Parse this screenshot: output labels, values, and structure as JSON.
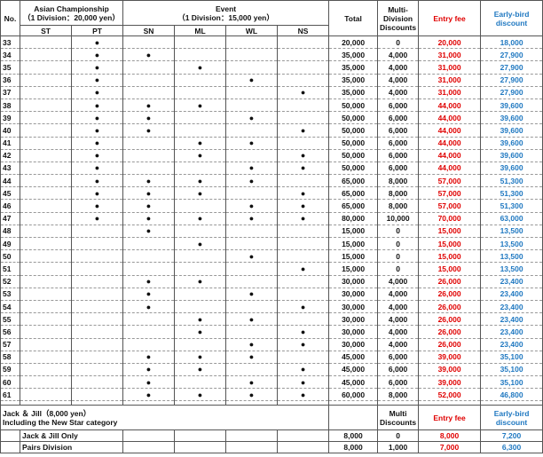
{
  "header": {
    "no": "No.",
    "asian": "Asian Championship",
    "asian_note": "（1 Division：20,000 yen）",
    "event": "Event",
    "event_note": "（1 Division：15,000 yen）",
    "total": "Total",
    "multi": "Multi-Division Discounts",
    "entry": "Entry fee",
    "early": "Early-bird discount",
    "subcolumns": [
      "ST",
      "PT",
      "SN",
      "ML",
      "WL",
      "NS"
    ]
  },
  "rows": [
    [
      "33",
      null,
      "●",
      null,
      null,
      null,
      null,
      "20,000",
      "0",
      "20,000",
      "18,000"
    ],
    [
      "34",
      null,
      "●",
      "●",
      null,
      null,
      null,
      "35,000",
      "4,000",
      "31,000",
      "27,900"
    ],
    [
      "35",
      null,
      "●",
      null,
      "●",
      null,
      null,
      "35,000",
      "4,000",
      "31,000",
      "27,900"
    ],
    [
      "36",
      null,
      "●",
      null,
      null,
      "●",
      null,
      "35,000",
      "4,000",
      "31,000",
      "27,900"
    ],
    [
      "37",
      null,
      "●",
      null,
      null,
      null,
      "●",
      "35,000",
      "4,000",
      "31,000",
      "27,900"
    ],
    [
      "38",
      null,
      "●",
      "●",
      "●",
      null,
      null,
      "50,000",
      "6,000",
      "44,000",
      "39,600"
    ],
    [
      "39",
      null,
      "●",
      "●",
      null,
      "●",
      null,
      "50,000",
      "6,000",
      "44,000",
      "39,600"
    ],
    [
      "40",
      null,
      "●",
      "●",
      null,
      null,
      "●",
      "50,000",
      "6,000",
      "44,000",
      "39,600"
    ],
    [
      "41",
      null,
      "●",
      null,
      "●",
      "●",
      null,
      "50,000",
      "6,000",
      "44,000",
      "39,600"
    ],
    [
      "42",
      null,
      "●",
      null,
      "●",
      null,
      "●",
      "50,000",
      "6,000",
      "44,000",
      "39,600"
    ],
    [
      "43",
      null,
      "●",
      null,
      null,
      "●",
      "●",
      "50,000",
      "6,000",
      "44,000",
      "39,600"
    ],
    [
      "44",
      null,
      "●",
      "●",
      "●",
      "●",
      null,
      "65,000",
      "8,000",
      "57,000",
      "51,300"
    ],
    [
      "45",
      null,
      "●",
      "●",
      "●",
      null,
      "●",
      "65,000",
      "8,000",
      "57,000",
      "51,300"
    ],
    [
      "46",
      null,
      "●",
      "●",
      null,
      "●",
      "●",
      "65,000",
      "8,000",
      "57,000",
      "51,300"
    ],
    [
      "47",
      null,
      "●",
      "●",
      "●",
      "●",
      "●",
      "80,000",
      "10,000",
      "70,000",
      "63,000"
    ],
    [
      "48",
      null,
      null,
      "●",
      null,
      null,
      null,
      "15,000",
      "0",
      "15,000",
      "13,500"
    ],
    [
      "49",
      null,
      null,
      null,
      "●",
      null,
      null,
      "15,000",
      "0",
      "15,000",
      "13,500"
    ],
    [
      "50",
      null,
      null,
      null,
      null,
      "●",
      null,
      "15,000",
      "0",
      "15,000",
      "13,500"
    ],
    [
      "51",
      null,
      null,
      null,
      null,
      null,
      "●",
      "15,000",
      "0",
      "15,000",
      "13,500"
    ],
    [
      "52",
      null,
      null,
      "●",
      "●",
      null,
      null,
      "30,000",
      "4,000",
      "26,000",
      "23,400"
    ],
    [
      "53",
      null,
      null,
      "●",
      null,
      "●",
      null,
      "30,000",
      "4,000",
      "26,000",
      "23,400"
    ],
    [
      "54",
      null,
      null,
      "●",
      null,
      null,
      "●",
      "30,000",
      "4,000",
      "26,000",
      "23,400"
    ],
    [
      "55",
      null,
      null,
      null,
      "●",
      "●",
      null,
      "30,000",
      "4,000",
      "26,000",
      "23,400"
    ],
    [
      "56",
      null,
      null,
      null,
      "●",
      null,
      "●",
      "30,000",
      "4,000",
      "26,000",
      "23,400"
    ],
    [
      "57",
      null,
      null,
      null,
      null,
      "●",
      "●",
      "30,000",
      "4,000",
      "26,000",
      "23,400"
    ],
    [
      "58",
      null,
      null,
      "●",
      "●",
      "●",
      null,
      "45,000",
      "6,000",
      "39,000",
      "35,100"
    ],
    [
      "59",
      null,
      null,
      "●",
      "●",
      null,
      "●",
      "45,000",
      "6,000",
      "39,000",
      "35,100"
    ],
    [
      "60",
      null,
      null,
      "●",
      null,
      "●",
      "●",
      "45,000",
      "6,000",
      "39,000",
      "35,100"
    ],
    [
      "61",
      null,
      null,
      "●",
      "●",
      "●",
      "●",
      "60,000",
      "8,000",
      "52,000",
      "46,800"
    ]
  ],
  "jack": {
    "title": "Jack ＆ Jill（8,000 yen）",
    "subtitle": "Including the New Star category",
    "multi": "Multi Discounts",
    "entry": "Entry fee",
    "early": "Early-bird discount",
    "rows": [
      [
        "Jack & Jill Only",
        "8,000",
        "0",
        "8,000",
        "7,200"
      ],
      [
        "Pairs Division",
        "8,000",
        "1,000",
        "7,000",
        "6,300"
      ]
    ]
  }
}
